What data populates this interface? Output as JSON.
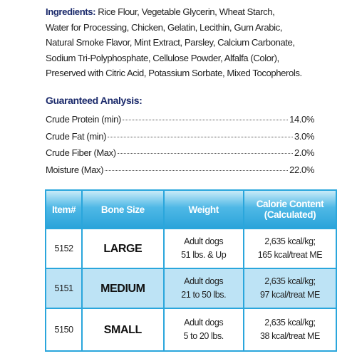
{
  "ingredients": {
    "label": "Ingredients:",
    "lines": [
      " Rice Flour, Vegetable Glycerin, Wheat Starch,",
      "Water for Processing, Chicken, Gelatin, Lecithin, Gum Arabic,",
      "Natural Smoke Flavor, Mint Extract, Parsley, Calcium Carbonate,",
      "Sodium Tri-Polyphosphate, Cellulose Powder, Alfalfa (Color),",
      "Preserved with Citric Acid, Potassium Sorbate, Mixed Tocopherols."
    ]
  },
  "analysis": {
    "title": "Guaranteed Analysis:",
    "rows": [
      {
        "name": "Crude Protein (min)",
        "value": "14.0%"
      },
      {
        "name": "Crude Fat (min)",
        "value": "3.0%"
      },
      {
        "name": "Crude Fiber (Max)",
        "value": "2.0%"
      },
      {
        "name": "Moisture (Max)",
        "value": "22.0%"
      }
    ]
  },
  "table": {
    "headers": [
      "Item#",
      "Bone Size",
      "Weight",
      [
        "Calorie Content",
        "(Calculated)"
      ]
    ],
    "rows": [
      [
        "5152",
        "LARGE",
        [
          "Adult dogs",
          "51 lbs. & Up"
        ],
        [
          "2,635 kcal/kg;",
          "165 kcal/treat ME"
        ]
      ],
      [
        "5151",
        "MEDIUM",
        [
          "Adult dogs",
          "21 to 50 lbs."
        ],
        [
          "2,635 kcal/kg;",
          "97 kcal/treat ME"
        ]
      ],
      [
        "5150",
        "SMALL",
        [
          "Adult dogs",
          "5 to 20 lbs."
        ],
        [
          "2,635 kcal/kg;",
          "38 kcal/treat ME"
        ]
      ]
    ]
  }
}
